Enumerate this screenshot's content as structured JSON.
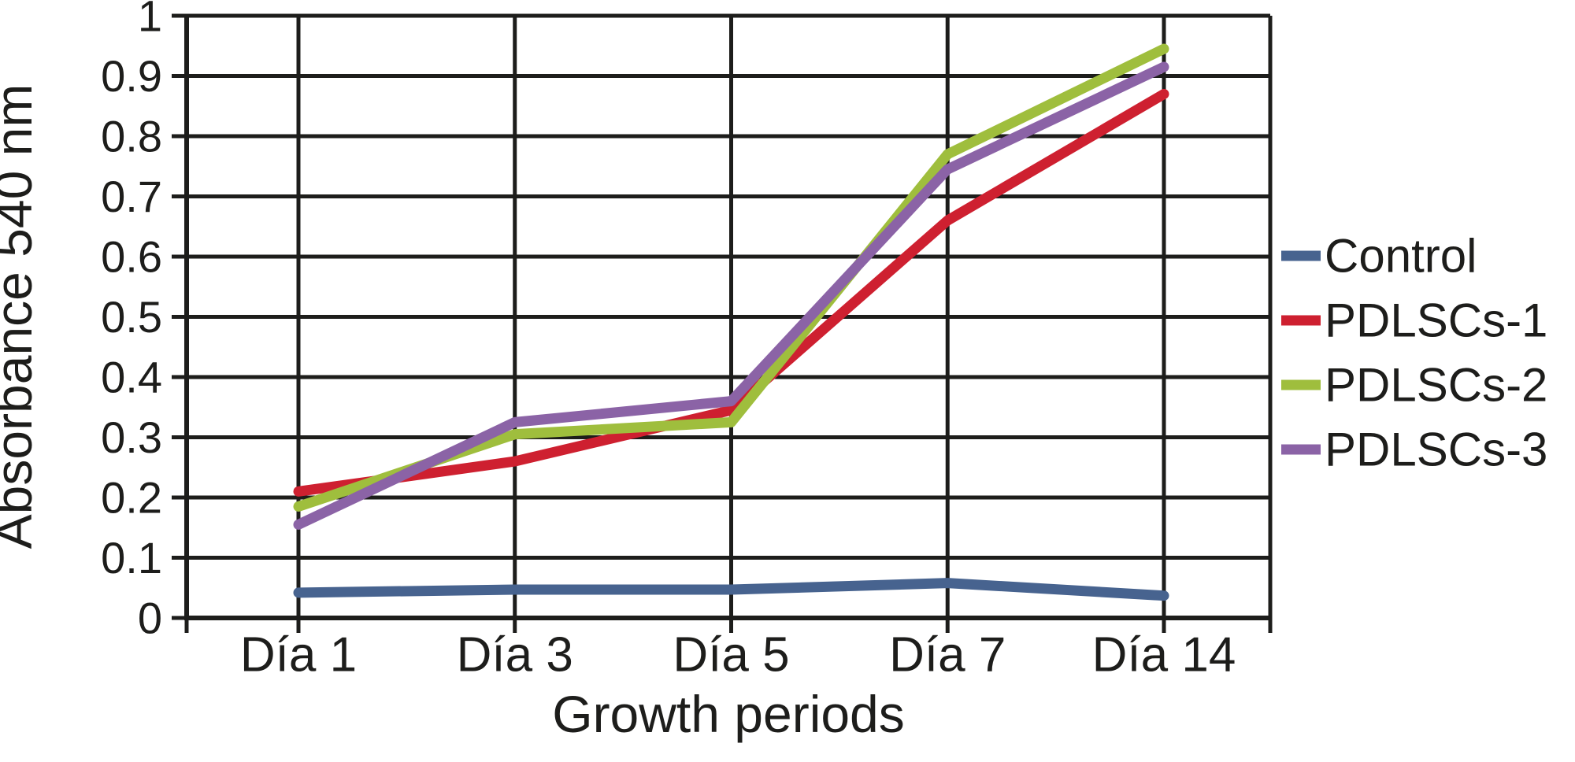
{
  "figure": {
    "background": "#ffffff",
    "ink_color": "#1d1d1b"
  },
  "chart_data": {
    "type": "line",
    "title": "",
    "xlabel": "Growth periods",
    "ylabel": "Absorbance 540 nm",
    "categories": [
      "Día 1",
      "Día 3",
      "Día 5",
      "Día 7",
      "Día 14"
    ],
    "series": [
      {
        "name": "Control",
        "color": "#47638f",
        "values": [
          0.042,
          0.047,
          0.047,
          0.058,
          0.037
        ]
      },
      {
        "name": "PDLSCs-1",
        "color": "#ce2030",
        "values": [
          0.21,
          0.26,
          0.345,
          0.66,
          0.87
        ]
      },
      {
        "name": "PDLSCs-2",
        "color": "#9fbe3d",
        "values": [
          0.185,
          0.305,
          0.325,
          0.77,
          0.945
        ]
      },
      {
        "name": "PDLSCs-3",
        "color": "#8b63a6",
        "values": [
          0.155,
          0.325,
          0.36,
          0.745,
          0.915
        ]
      }
    ],
    "ylim": [
      0,
      1
    ],
    "ytick_step": 0.1,
    "y_tick_labels": [
      "0",
      "0.1",
      "0.2",
      "0.3",
      "0.4",
      "0.5",
      "0.6",
      "0.7",
      "0.8",
      "0.9",
      "1"
    ],
    "grid": "both",
    "legend_position": "right"
  }
}
